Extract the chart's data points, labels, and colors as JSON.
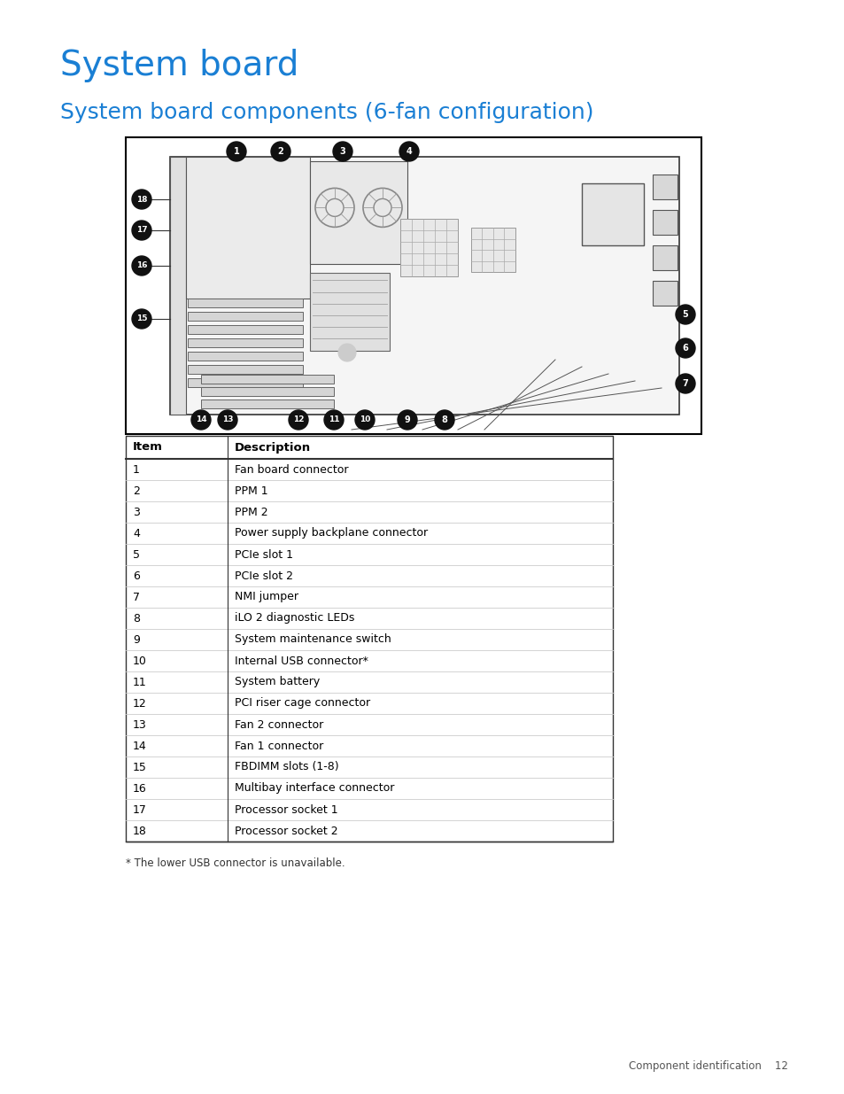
{
  "title": "System board",
  "subtitle": "System board components (6-fan configuration)",
  "title_color": "#1a7fd4",
  "subtitle_color": "#1a7fd4",
  "table_header": [
    "Item",
    "Description"
  ],
  "table_rows": [
    [
      "1",
      "Fan board connector"
    ],
    [
      "2",
      "PPM 1"
    ],
    [
      "3",
      "PPM 2"
    ],
    [
      "4",
      "Power supply backplane connector"
    ],
    [
      "5",
      "PCIe slot 1"
    ],
    [
      "6",
      "PCIe slot 2"
    ],
    [
      "7",
      "NMI jumper"
    ],
    [
      "8",
      "iLO 2 diagnostic LEDs"
    ],
    [
      "9",
      "System maintenance switch"
    ],
    [
      "10",
      "Internal USB connector*"
    ],
    [
      "11",
      "System battery"
    ],
    [
      "12",
      "PCI riser cage connector"
    ],
    [
      "13",
      "Fan 2 connector"
    ],
    [
      "14",
      "Fan 1 connector"
    ],
    [
      "15",
      "FBDIMM slots (1-8)"
    ],
    [
      "16",
      "Multibay interface connector"
    ],
    [
      "17",
      "Processor socket 1"
    ],
    [
      "18",
      "Processor socket 2"
    ]
  ],
  "footnote": "* The lower USB connector is unavailable.",
  "footer_text": "Component identification    12",
  "bg_color": "#ffffff",
  "callout_numbers_top": [
    "1",
    "2",
    "3",
    "4"
  ],
  "callout_numbers_right": [
    "5",
    "6",
    "7"
  ],
  "callout_numbers_left": [
    "18",
    "17",
    "16",
    "15"
  ],
  "callout_numbers_bottom": [
    "14",
    "13",
    "12",
    "11",
    "10",
    "9",
    "8"
  ]
}
